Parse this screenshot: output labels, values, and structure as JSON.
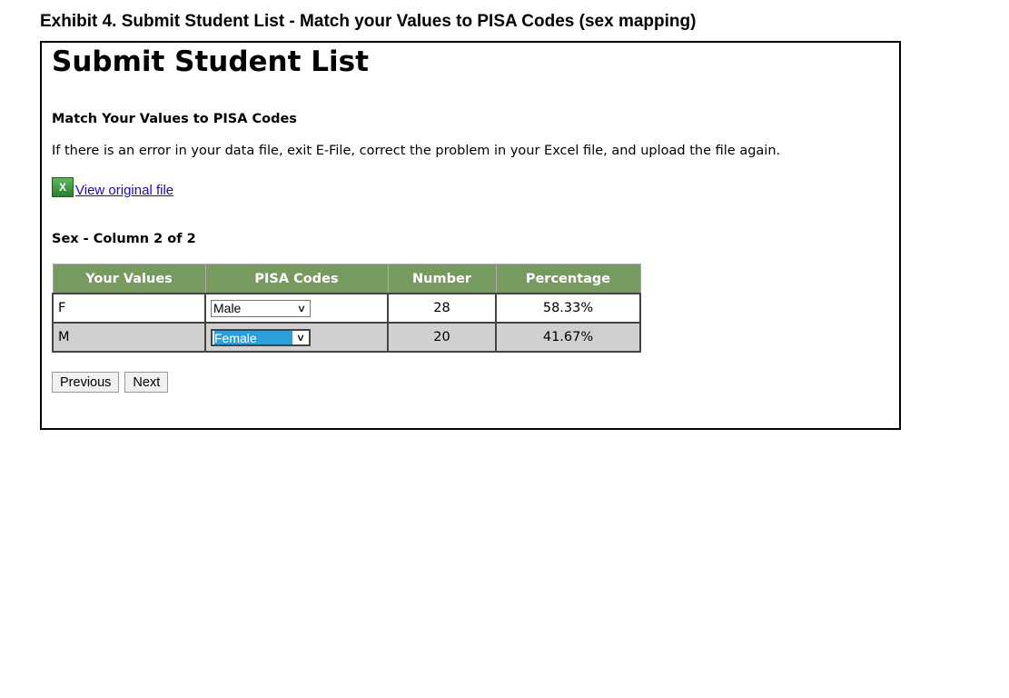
{
  "caption": "Exhibit 4. Submit Student List - Match your Values to PISA Codes (sex mapping)",
  "title": "Submit Student List",
  "subtitle": "Match Your Values to PISA Codes",
  "info": "If there is an error in your data file, exit E-File, correct the problem in your Excel file, and upload the file again.",
  "link": {
    "icon": "excel-icon",
    "label": "View original file"
  },
  "section": "Sex - Column 2 of 2",
  "table": {
    "headers": [
      "Your Values",
      "PISA Codes",
      "Number",
      "Percentage"
    ],
    "rows": [
      {
        "value": "F",
        "code": "Male",
        "number": "28",
        "percentage": "58.33%"
      },
      {
        "value": "M",
        "code": "Female",
        "number": "20",
        "percentage": "41.67%"
      }
    ]
  },
  "buttons": {
    "previous": "Previous",
    "next": "Next"
  },
  "colors": {
    "header_bg": "#779b5f",
    "selected_bg": "#2a9fd8",
    "alt_row": "#d0d0d0"
  }
}
